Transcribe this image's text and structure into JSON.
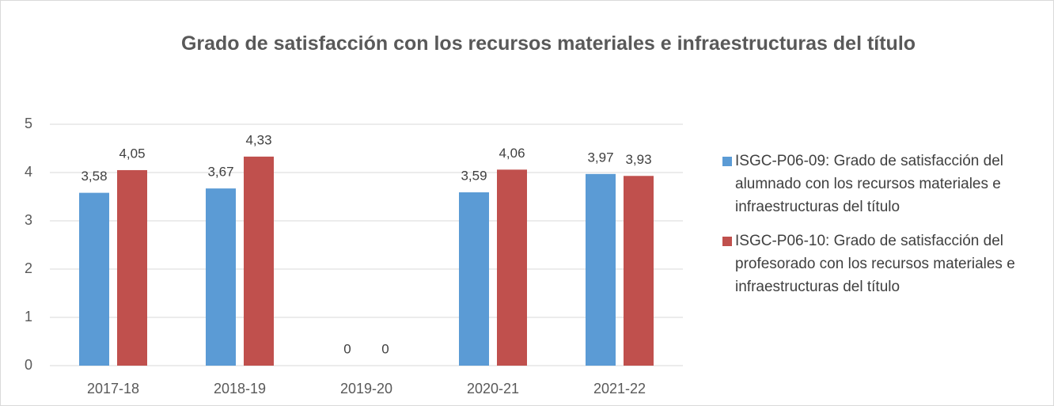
{
  "chart_data": {
    "type": "bar",
    "title": "Grado de satisfacción con los recursos materiales e infraestructuras del título",
    "categories": [
      "2017-18",
      "2018-19",
      "2019-20",
      "2020-21",
      "2021-22"
    ],
    "series": [
      {
        "name": "ISGC-P06-09: Grado de satisfacción del alumnado con los recursos materiales e infraestructuras del título",
        "color": "#5b9bd5",
        "values": [
          3.58,
          3.67,
          0,
          3.59,
          3.97
        ],
        "value_labels": [
          "3,58",
          "3,67",
          "0",
          "3,59",
          "3,97"
        ]
      },
      {
        "name": "ISGC-P06-10: Grado de satisfacción del profesorado con los recursos materiales e infraestructuras del título",
        "color": "#c0504d",
        "values": [
          4.05,
          4.33,
          0,
          4.06,
          3.93
        ],
        "value_labels": [
          "4,05",
          "4,33",
          "0",
          "4,06",
          "3,93"
        ]
      }
    ],
    "ylim": [
      0,
      5
    ],
    "yticks": [
      0,
      1,
      2,
      3,
      4,
      5
    ],
    "grid": true,
    "legend": "right"
  }
}
